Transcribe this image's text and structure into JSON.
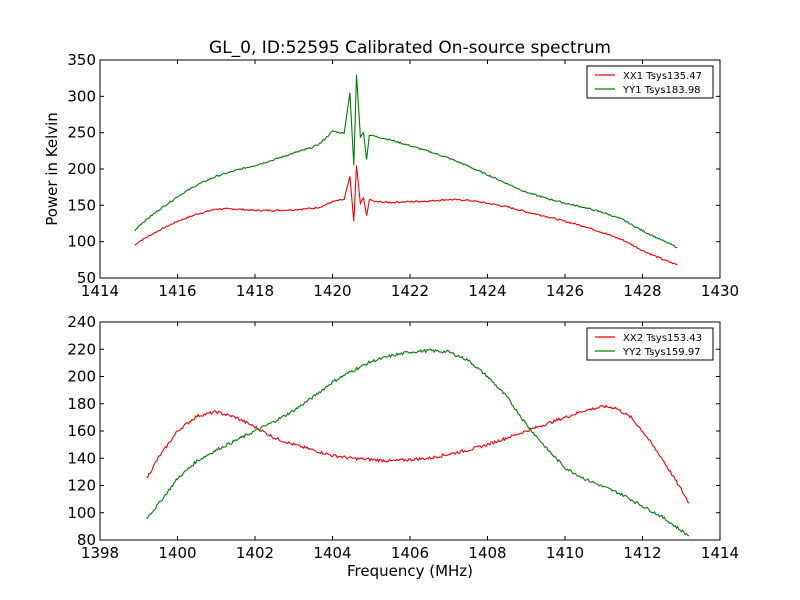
{
  "chart_data": [
    {
      "type": "line",
      "title": "GL_0, ID:52595 Calibrated On-source spectrum",
      "xlabel": "",
      "ylabel": "Power in Kelvin",
      "xlim": [
        1414,
        1430
      ],
      "ylim": [
        50,
        350
      ],
      "xticks": [
        "1414",
        "1416",
        "1418",
        "1420",
        "1422",
        "1424",
        "1426",
        "1428",
        "1430"
      ],
      "yticks": [
        "50",
        "100",
        "150",
        "200",
        "250",
        "300",
        "350"
      ],
      "legend_position": "top-right",
      "grid": false,
      "series": [
        {
          "name": "XX1 Tsys135.47",
          "color": "#ff0000",
          "x": [
            1414.9,
            1415,
            1415.5,
            1416,
            1416.5,
            1417,
            1417.5,
            1418,
            1418.5,
            1419,
            1419.5,
            1419.7,
            1420,
            1420.3,
            1420.45,
            1420.55,
            1420.62,
            1420.72,
            1420.8,
            1420.88,
            1420.95,
            1421.1,
            1421.5,
            1422,
            1422.5,
            1423,
            1423.5,
            1424,
            1424.5,
            1425,
            1425.5,
            1426,
            1426.5,
            1427,
            1427.5,
            1428,
            1428.5,
            1428.9
          ],
          "y": [
            95,
            100,
            115,
            128,
            138,
            145,
            145,
            143,
            143,
            144,
            146,
            148,
            155,
            158,
            190,
            128,
            205,
            152,
            160,
            135,
            158,
            155,
            154,
            155,
            156,
            158,
            157,
            153,
            148,
            141,
            135,
            128,
            121,
            112,
            102,
            88,
            76,
            68
          ]
        },
        {
          "name": "YY1 Tsys183.98",
          "color": "#008000",
          "x": [
            1414.9,
            1415,
            1415.5,
            1416,
            1416.5,
            1417,
            1417.5,
            1418,
            1418.5,
            1419,
            1419.5,
            1419.7,
            1420,
            1420.3,
            1420.45,
            1420.55,
            1420.62,
            1420.72,
            1420.8,
            1420.88,
            1420.95,
            1421.1,
            1421.5,
            1422,
            1422.5,
            1423,
            1423.5,
            1424,
            1424.5,
            1425,
            1425.5,
            1426,
            1426.5,
            1427,
            1427.5,
            1428,
            1428.5,
            1428.9
          ],
          "y": [
            115,
            122,
            143,
            162,
            178,
            190,
            198,
            205,
            213,
            222,
            230,
            236,
            252,
            249,
            305,
            205,
            330,
            245,
            250,
            213,
            247,
            245,
            240,
            232,
            224,
            215,
            204,
            192,
            180,
            168,
            160,
            153,
            147,
            140,
            130,
            115,
            102,
            92
          ]
        }
      ]
    },
    {
      "type": "line",
      "title": "",
      "xlabel": "Frequency (MHz)",
      "ylabel": "",
      "xlim": [
        1398,
        1414
      ],
      "ylim": [
        80,
        240
      ],
      "xticks": [
        "1398",
        "1400",
        "1402",
        "1404",
        "1406",
        "1408",
        "1410",
        "1412",
        "1414"
      ],
      "yticks": [
        "80",
        "100",
        "120",
        "140",
        "160",
        "180",
        "200",
        "220",
        "240"
      ],
      "legend_position": "top-right",
      "grid": false,
      "series": [
        {
          "name": "XX2 Tsys153.43",
          "color": "#ff0000",
          "x": [
            1399.2,
            1399.5,
            1400,
            1400.5,
            1401,
            1401.5,
            1402,
            1402.5,
            1403,
            1403.5,
            1404,
            1404.5,
            1405,
            1405.5,
            1406,
            1406.5,
            1407,
            1407.5,
            1408,
            1408.5,
            1409,
            1409.5,
            1410,
            1410.5,
            1411,
            1411.3,
            1411.7,
            1412,
            1412.5,
            1413,
            1413.2
          ],
          "y": [
            125,
            140,
            160,
            171,
            174,
            170,
            163,
            155,
            150,
            146,
            142,
            140,
            139,
            138,
            139,
            140,
            143,
            146,
            150,
            155,
            160,
            165,
            170,
            175,
            178,
            177,
            170,
            160,
            140,
            117,
            107
          ]
        },
        {
          "name": "YY2 Tsys159.97",
          "color": "#008000",
          "x": [
            1399.2,
            1399.5,
            1400,
            1400.5,
            1401,
            1401.5,
            1402,
            1402.5,
            1403,
            1403.5,
            1404,
            1404.5,
            1405,
            1405.5,
            1406,
            1406.5,
            1407,
            1407.5,
            1408,
            1408.5,
            1409,
            1409.5,
            1410,
            1410.5,
            1411,
            1411.5,
            1412,
            1412.5,
            1413,
            1413.2
          ],
          "y": [
            96,
            106,
            125,
            138,
            146,
            153,
            160,
            167,
            175,
            185,
            196,
            204,
            211,
            215,
            218,
            219,
            218,
            212,
            200,
            185,
            165,
            148,
            133,
            125,
            119,
            113,
            105,
            97,
            87,
            83
          ]
        }
      ]
    }
  ]
}
